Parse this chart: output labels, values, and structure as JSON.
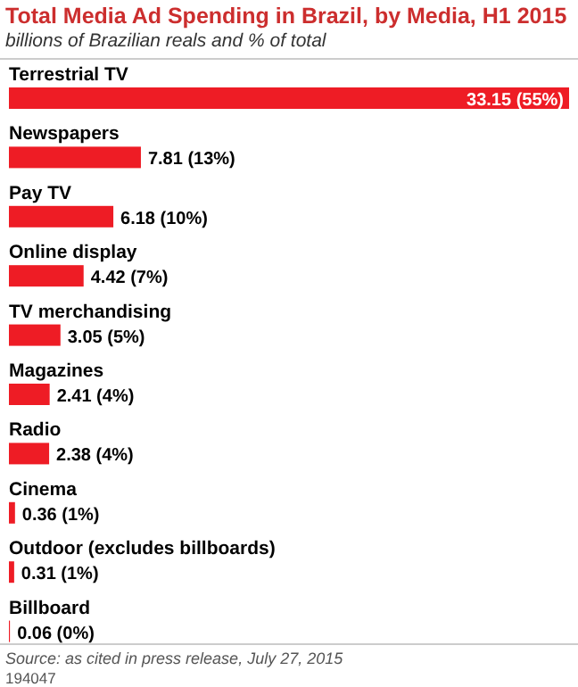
{
  "chart_data": {
    "type": "bar",
    "orientation": "horizontal",
    "title": "Total Media Ad Spending in Brazil, by Media, H1 2015",
    "subtitle": "billions of Brazilian reals and % of total",
    "categories": [
      "Terrestrial TV",
      "Newspapers",
      "Pay TV",
      "Online display",
      "TV merchandising",
      "Magazines",
      "Radio",
      "Cinema",
      "Outdoor (excludes billboards)",
      "Billboard"
    ],
    "values": [
      33.15,
      7.81,
      6.18,
      4.42,
      3.05,
      2.41,
      2.38,
      0.36,
      0.31,
      0.06
    ],
    "value_labels": [
      "33.15 (55%)",
      "7.81 (13%)",
      "6.18 (10%)",
      "4.42 (7%)",
      "3.05 (5%)",
      "2.41 (4%)",
      "2.38 (4%)",
      "0.36 (1%)",
      "0.31 (1%)",
      "0.06 (0%)"
    ],
    "color": "#ee1c25",
    "annotations": [
      "Source: as cited in press release, July 27, 2015",
      "194047"
    ]
  }
}
